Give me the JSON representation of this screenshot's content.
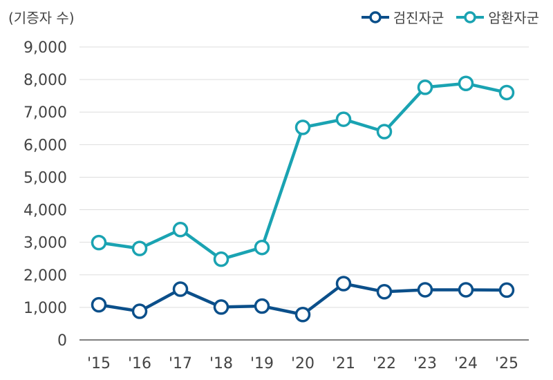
{
  "unit_label": "(기증자 수)",
  "chart_data": {
    "type": "line",
    "categories": [
      "'15",
      "'16",
      "'17",
      "'18",
      "'19",
      "'20",
      "'21",
      "'22",
      "'23",
      "'24",
      "'25"
    ],
    "series": [
      {
        "name": "검진자군",
        "color": "#0b4f8a",
        "values": [
          1080,
          880,
          1560,
          1010,
          1040,
          780,
          1730,
          1480,
          1540,
          1540,
          1530
        ]
      },
      {
        "name": "암환자군",
        "color": "#1aa3b2",
        "values": [
          2990,
          2810,
          3390,
          2480,
          2840,
          6530,
          6780,
          6400,
          7760,
          7880,
          7600
        ]
      }
    ],
    "ylim": [
      0,
      9000
    ],
    "yticks": [
      0,
      1000,
      2000,
      3000,
      4000,
      5000,
      6000,
      7000,
      8000,
      9000
    ],
    "ytick_labels": [
      "0",
      "1,000",
      "2,000",
      "3,000",
      "4,000",
      "5,000",
      "6,000",
      "7,000",
      "8,000",
      "9,000"
    ],
    "grid": true,
    "legend_position": "top-right"
  }
}
